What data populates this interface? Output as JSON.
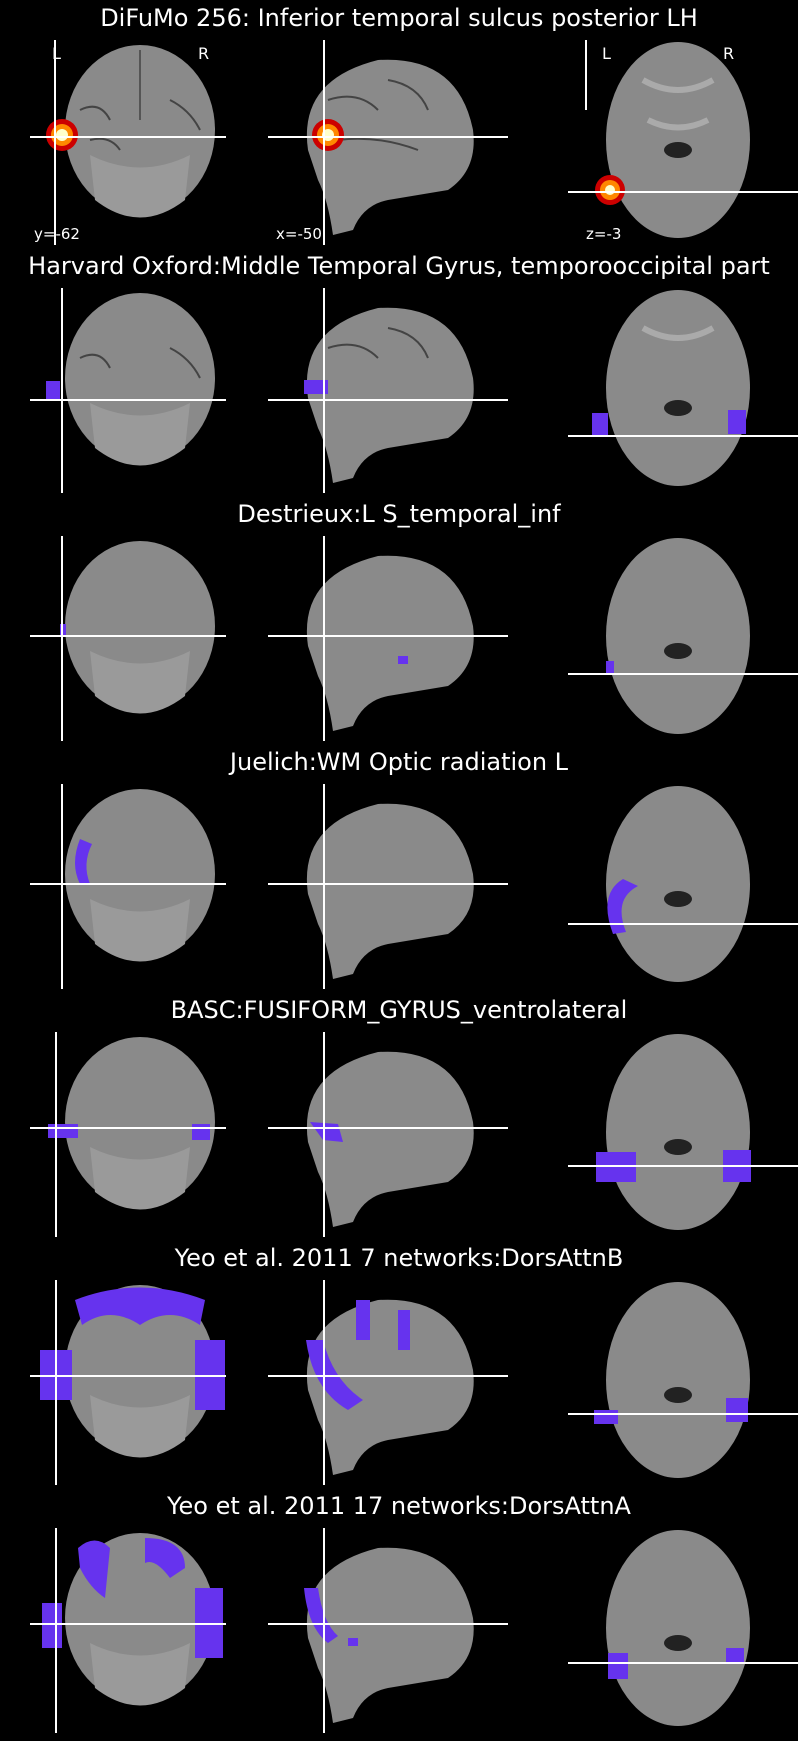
{
  "panels": [
    {
      "title": "DiFuMo 256: Inferior temporal sulcus posterior LH",
      "overlay": "hot",
      "show_annotations": true
    },
    {
      "title": "Harvard Oxford:Middle Temporal Gyrus, temporooccipital part",
      "overlay": "purple",
      "show_annotations": false
    },
    {
      "title": "Destrieux:L S_temporal_inf",
      "overlay": "purple",
      "show_annotations": false
    },
    {
      "title": "Juelich:WM Optic radiation L",
      "overlay": "purple",
      "show_annotations": false
    },
    {
      "title": "BASC:FUSIFORM_GYRUS_ventrolateral",
      "overlay": "purple",
      "show_annotations": false
    },
    {
      "title": "Yeo et al. 2011 7 networks:DorsAttnB",
      "overlay": "purple",
      "show_annotations": false
    },
    {
      "title": "Yeo et al. 2011 17 networks:DorsAttnA",
      "overlay": "purple",
      "show_annotations": false
    }
  ],
  "annotations": {
    "coronal_coord": "y=-62",
    "sagittal_coord": "x=-50",
    "axial_coord": "z=-3",
    "left_label": "L",
    "right_label": "R"
  },
  "colors": {
    "background": "#000000",
    "brain_fill": "#8a8a8a",
    "overlay_purple": "#6633ee",
    "crosshair": "#ffffff"
  }
}
